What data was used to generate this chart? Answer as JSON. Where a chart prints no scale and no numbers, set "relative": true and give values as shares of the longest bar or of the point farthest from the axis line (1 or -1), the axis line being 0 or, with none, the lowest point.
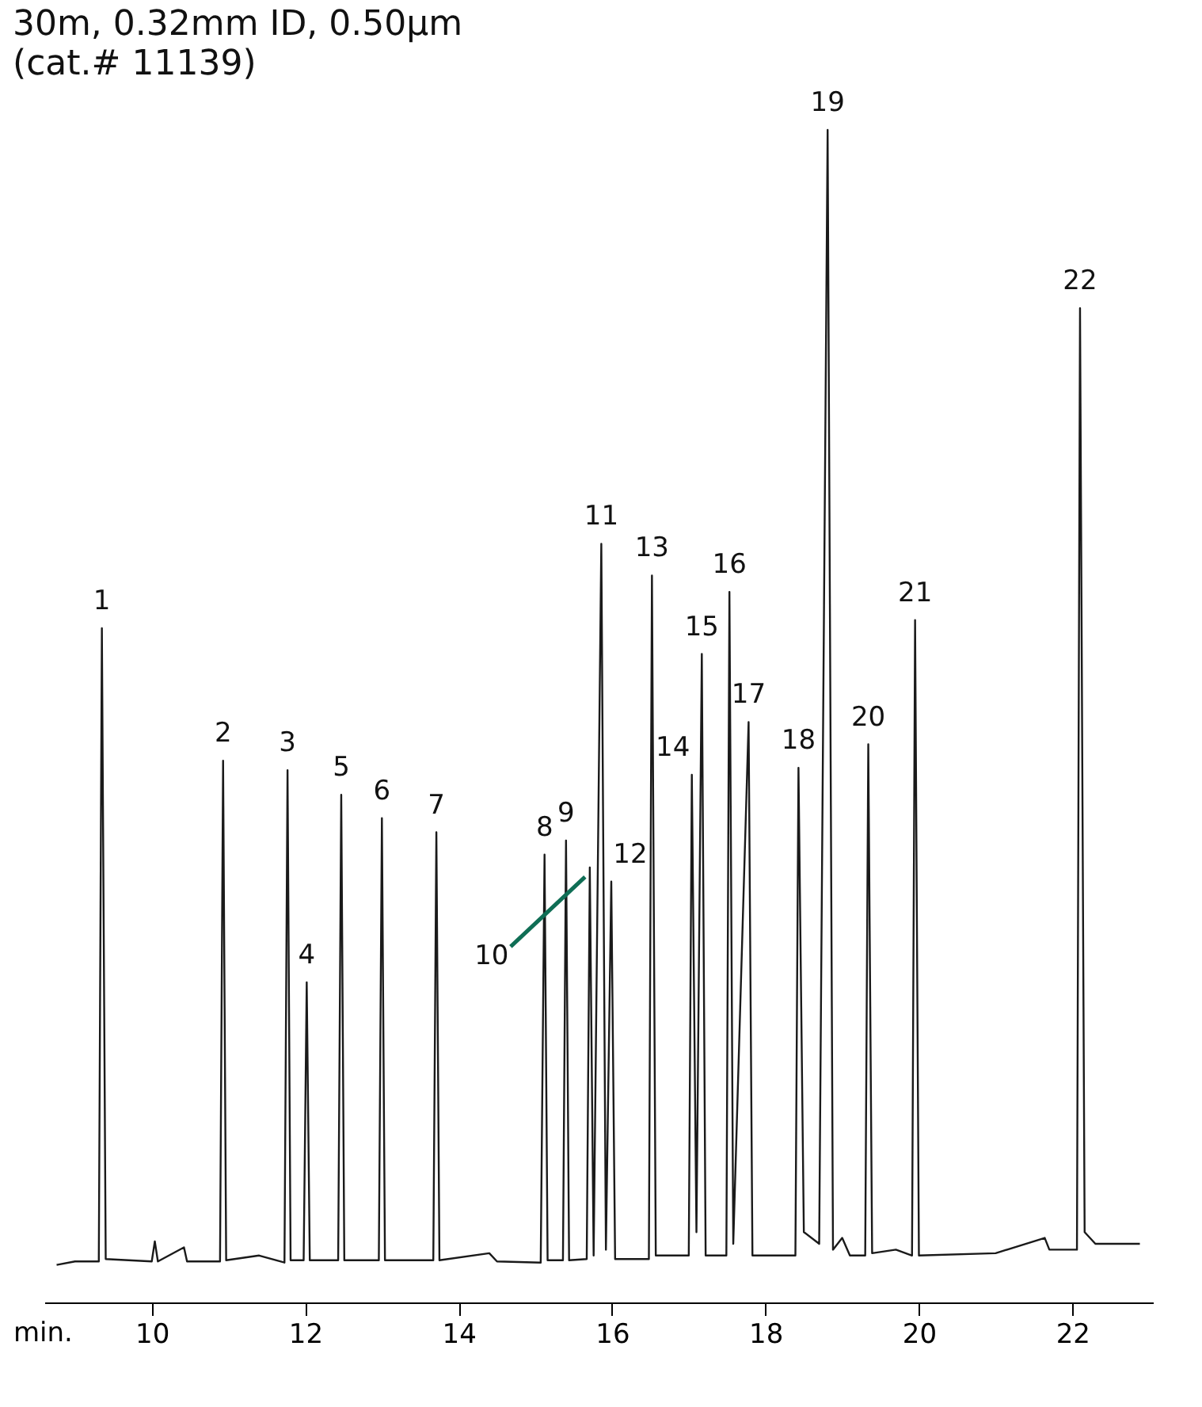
{
  "chart_data": {
    "type": "line",
    "title": "30m, 0.32mm ID, 0.50µm",
    "subtitle": "(cat.# 11139)",
    "xlabel": "min.",
    "relative": true,
    "grid": false,
    "marker": "none",
    "line_style": "solid",
    "xlim": [
      8.6,
      23.05
    ],
    "xticks": [
      10,
      12,
      14,
      16,
      18,
      20,
      22
    ],
    "series": [
      {
        "color": "#1a1a1a",
        "x": [
          8.76,
          9.0,
          9.31,
          9.35,
          9.4,
          10.0,
          10.04,
          10.08,
          10.42,
          10.46,
          10.89,
          10.93,
          10.97,
          11.4,
          11.73,
          11.77,
          11.81,
          11.98,
          12.02,
          12.06,
          12.43,
          12.47,
          12.51,
          12.96,
          13.0,
          13.04,
          13.67,
          13.71,
          13.75,
          14.4,
          14.5,
          15.07,
          15.12,
          15.16,
          15.36,
          15.4,
          15.44,
          15.67,
          15.71,
          15.76,
          15.86,
          15.92,
          15.99,
          16.04,
          16.48,
          16.52,
          16.57,
          17.0,
          17.04,
          17.1,
          17.17,
          17.22,
          17.49,
          17.53,
          17.58,
          17.78,
          17.83,
          18.39,
          18.43,
          18.5,
          18.7,
          18.81,
          18.88,
          19.0,
          19.1,
          19.3,
          19.34,
          19.39,
          19.7,
          19.91,
          19.95,
          20.0,
          21.0,
          21.64,
          21.7,
          22.06,
          22.1,
          22.16,
          22.3,
          22.88
        ],
        "values": [
          0.032,
          0.035,
          0.035,
          0.575,
          0.037,
          0.035,
          0.052,
          0.035,
          0.047,
          0.035,
          0.035,
          0.462,
          0.036,
          0.04,
          0.034,
          0.454,
          0.036,
          0.036,
          0.273,
          0.036,
          0.036,
          0.433,
          0.036,
          0.036,
          0.413,
          0.036,
          0.036,
          0.401,
          0.036,
          0.042,
          0.035,
          0.034,
          0.382,
          0.036,
          0.036,
          0.394,
          0.036,
          0.037,
          0.371,
          0.04,
          0.647,
          0.045,
          0.359,
          0.037,
          0.037,
          0.62,
          0.04,
          0.04,
          0.45,
          0.06,
          0.553,
          0.04,
          0.04,
          0.606,
          0.05,
          0.495,
          0.04,
          0.04,
          0.456,
          0.06,
          0.05,
          1.0,
          0.045,
          0.055,
          0.04,
          0.04,
          0.476,
          0.042,
          0.045,
          0.04,
          0.582,
          0.04,
          0.042,
          0.055,
          0.045,
          0.045,
          0.848,
          0.06,
          0.05,
          0.05
        ]
      }
    ],
    "annotations": [
      {
        "text": "1",
        "x": 9.35,
        "y": 0.575
      },
      {
        "text": "2",
        "x": 10.93,
        "y": 0.462
      },
      {
        "text": "3",
        "x": 11.77,
        "y": 0.454
      },
      {
        "text": "4",
        "x": 12.02,
        "y": 0.273
      },
      {
        "text": "5",
        "x": 12.47,
        "y": 0.433
      },
      {
        "text": "6",
        "x": 13.0,
        "y": 0.413
      },
      {
        "text": "7",
        "x": 13.71,
        "y": 0.401
      },
      {
        "text": "8",
        "x": 15.12,
        "y": 0.382
      },
      {
        "text": "9",
        "x": 15.4,
        "y": 0.394
      },
      {
        "text": "10",
        "x": 15.71,
        "y": 0.371
      },
      {
        "text": "11",
        "x": 15.86,
        "y": 0.647
      },
      {
        "text": "12",
        "x": 15.99,
        "y": 0.359
      },
      {
        "text": "13",
        "x": 16.52,
        "y": 0.62
      },
      {
        "text": "14",
        "x": 17.04,
        "y": 0.45
      },
      {
        "text": "15",
        "x": 17.17,
        "y": 0.553
      },
      {
        "text": "16",
        "x": 17.53,
        "y": 0.606
      },
      {
        "text": "17",
        "x": 17.78,
        "y": 0.495
      },
      {
        "text": "18",
        "x": 18.43,
        "y": 0.456
      },
      {
        "text": "19",
        "x": 18.81,
        "y": 1.0
      },
      {
        "text": "20",
        "x": 19.34,
        "y": 0.476
      },
      {
        "text": "21",
        "x": 19.95,
        "y": 0.582
      },
      {
        "text": "22",
        "x": 22.1,
        "y": 0.848
      }
    ]
  }
}
